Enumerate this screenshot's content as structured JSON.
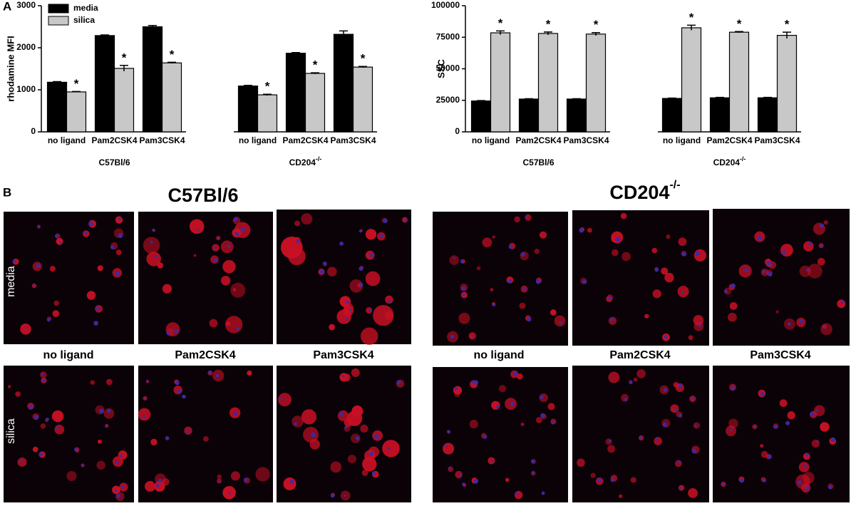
{
  "chart_data": [
    {
      "type": "bar",
      "panel": "A",
      "y_label": "rhodamine MFI",
      "categories": [
        "no ligand",
        "Pam2CSK4",
        "Pam3CSK4",
        null,
        "no ligand",
        "Pam2CSK4",
        "Pam3CSK4"
      ],
      "groups": [
        {
          "label": "C57Bl/6"
        },
        {
          "label": "CD204",
          "label_sup": "-/-"
        }
      ],
      "series": [
        {
          "name": "media",
          "color": "#000000",
          "values": [
            1180,
            2290,
            2500,
            null,
            1090,
            1870,
            2320
          ],
          "errors": [
            15,
            15,
            30,
            null,
            15,
            15,
            80
          ],
          "markers": [
            null,
            null,
            null,
            null,
            null,
            null,
            null
          ]
        },
        {
          "name": "silica",
          "color": "#c8c8c8",
          "values": [
            950,
            1510,
            1640,
            null,
            880,
            1390,
            1540
          ],
          "errors": [
            10,
            70,
            15,
            null,
            15,
            15,
            15
          ],
          "markers": [
            "*",
            "*",
            "*",
            null,
            "*",
            "*",
            "*"
          ]
        }
      ],
      "ylim": [
        0,
        3000
      ],
      "yticks": [
        0,
        1000,
        2000,
        3000
      ],
      "legend": "top-left"
    },
    {
      "type": "bar",
      "y_label": "SSC",
      "categories": [
        "no ligand",
        "Pam2CSK4",
        "Pam3CSK4",
        null,
        "no ligand",
        "Pam2CSK4",
        "Pam3CSK4"
      ],
      "groups": [
        {
          "label": "C57Bl/6"
        },
        {
          "label": "CD204",
          "label_sup": "-/-"
        }
      ],
      "series": [
        {
          "name": "media",
          "color": "#000000",
          "values": [
            24500,
            26000,
            26000,
            null,
            26500,
            27000,
            27000
          ],
          "errors": [
            300,
            300,
            300,
            null,
            300,
            300,
            300
          ],
          "markers": [
            null,
            null,
            null,
            null,
            null,
            null,
            null
          ]
        },
        {
          "name": "silica",
          "color": "#c8c8c8",
          "values": [
            78500,
            78000,
            77500,
            null,
            82500,
            79000,
            76500
          ],
          "errors": [
            1500,
            1200,
            1200,
            null,
            2000,
            500,
            2500
          ],
          "markers": [
            "*",
            "*",
            "*",
            null,
            "*",
            "*",
            "*"
          ]
        }
      ],
      "ylim": [
        0,
        100000
      ],
      "yticks": [
        0,
        25000,
        50000,
        75000,
        100000
      ]
    }
  ],
  "panel_b": {
    "label": "B",
    "groups": [
      {
        "title": "C57Bl/6",
        "columns": [
          "no ligand",
          "Pam2CSK4",
          "Pam3CSK4"
        ],
        "rows": [
          "media",
          "silica"
        ]
      },
      {
        "title": "CD204",
        "title_sup": "-/-",
        "columns": [
          "no ligand",
          "Pam2CSK4",
          "Pam3CSK4"
        ]
      }
    ]
  }
}
